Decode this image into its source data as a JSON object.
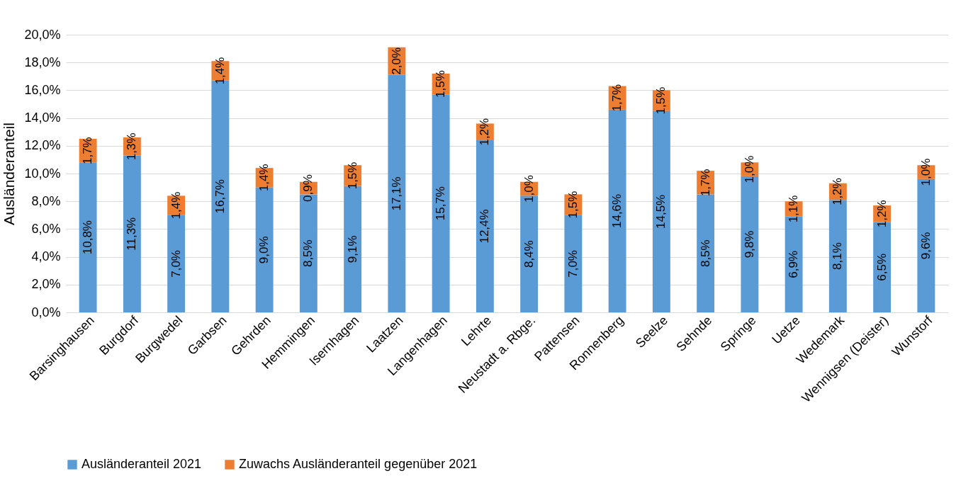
{
  "chart_data": {
    "type": "bar",
    "stacked": true,
    "ylabel": "Ausländeranteil",
    "categories": [
      "Barsinghausen",
      "Burgdorf",
      "Burgwedel",
      "Garbsen",
      "Gehrden",
      "Hemmingen",
      "Isernhagen",
      "Laatzen",
      "Langenhagen",
      "Lehrte",
      "Neustadt a. Rbge.",
      "Pattensen",
      "Ronnenberg",
      "Seelze",
      "Sehnde",
      "Springe",
      "Uetze",
      "Wedemark",
      "Wennigsen (Deister)",
      "Wunstorf"
    ],
    "series": [
      {
        "name": "Ausländeranteil 2021",
        "color": "#5b9bd5",
        "values": [
          10.8,
          11.3,
          7.0,
          16.7,
          9.0,
          8.5,
          9.1,
          17.1,
          15.7,
          12.4,
          8.4,
          7.0,
          14.6,
          14.5,
          8.5,
          9.8,
          6.9,
          8.1,
          6.5,
          9.6
        ],
        "value_labels": [
          "10,8%",
          "11,3%",
          "7,0%",
          "16,7%",
          "9,0%",
          "8,5%",
          "9,1%",
          "17,1%",
          "15,7%",
          "12,4%",
          "8,4%",
          "7,0%",
          "14,6%",
          "14,5%",
          "8,5%",
          "9,8%",
          "6,9%",
          "8,1%",
          "6,5%",
          "9,6%"
        ]
      },
      {
        "name": "Zuwachs Ausländeranteil gegenüber 2021",
        "color": "#ed7d31",
        "values": [
          1.7,
          1.3,
          1.4,
          1.4,
          1.4,
          0.9,
          1.5,
          2.0,
          1.5,
          1.2,
          1.0,
          1.5,
          1.7,
          1.5,
          1.7,
          1.0,
          1.1,
          1.2,
          1.2,
          1.0
        ],
        "value_labels": [
          "1,7%",
          "1,3%",
          "1,4%",
          "1,4%",
          "1,4%",
          "0,9%",
          "1,5%",
          "2,0%",
          "1,5%",
          "1,2%",
          "1,0%",
          "1,5%",
          "1,7%",
          "1,5%",
          "1,7%",
          "1,0%",
          "1,1%",
          "1,2%",
          "1,2%",
          "1,0%"
        ]
      }
    ],
    "ylim": [
      0,
      20
    ],
    "yticks": [
      {
        "value": 0,
        "label": "0,0%"
      },
      {
        "value": 2,
        "label": "2,0%"
      },
      {
        "value": 4,
        "label": "4,0%"
      },
      {
        "value": 6,
        "label": "6,0%"
      },
      {
        "value": 8,
        "label": "8,0%"
      },
      {
        "value": 10,
        "label": "10,0%"
      },
      {
        "value": 12,
        "label": "12,0%"
      },
      {
        "value": 14,
        "label": "14,0%"
      },
      {
        "value": 16,
        "label": "16,0%"
      },
      {
        "value": 18,
        "label": "18,0%"
      },
      {
        "value": 20,
        "label": "20,0%"
      }
    ],
    "grid": "y",
    "legend": "bottom"
  }
}
